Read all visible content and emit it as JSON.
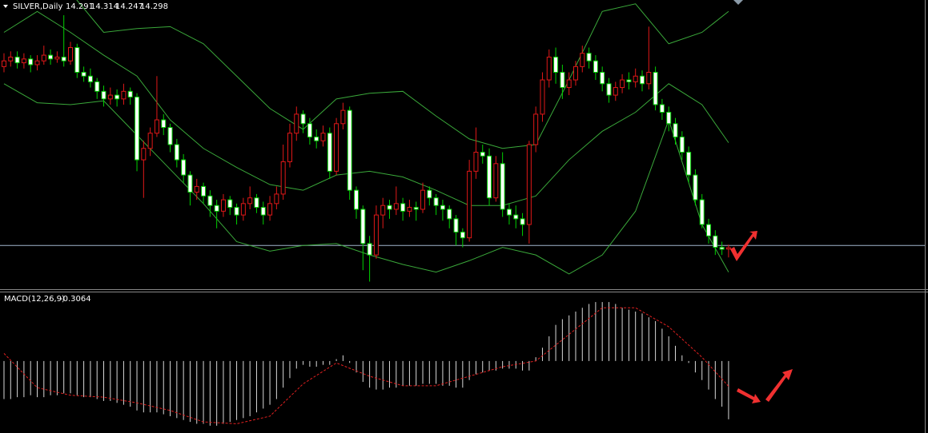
{
  "chart_data": [
    {
      "type": "candlestick",
      "title": "SILVER,Daily",
      "xlim": [
        -0.6,
        139.0
      ],
      "ylim": [
        14.08,
        15.6
      ],
      "up_color": "#e01818",
      "down_color": "#ffffff",
      "down_wick_color": "#00d000",
      "ohlc": [
        [
          15.25,
          15.32,
          15.22,
          15.28
        ],
        [
          15.28,
          15.33,
          15.25,
          15.3
        ],
        [
          15.3,
          15.33,
          15.24,
          15.27
        ],
        [
          15.27,
          15.32,
          15.24,
          15.29
        ],
        [
          15.29,
          15.31,
          15.22,
          15.26
        ],
        [
          15.26,
          15.31,
          15.23,
          15.28
        ],
        [
          15.28,
          15.36,
          15.26,
          15.31
        ],
        [
          15.31,
          15.34,
          15.26,
          15.29
        ],
        [
          15.29,
          15.33,
          15.27,
          15.3
        ],
        [
          15.3,
          15.52,
          15.25,
          15.28
        ],
        [
          15.28,
          15.38,
          15.26,
          15.35
        ],
        [
          15.35,
          15.37,
          15.19,
          15.22
        ],
        [
          15.22,
          15.25,
          15.17,
          15.2
        ],
        [
          15.2,
          15.24,
          15.14,
          15.17
        ],
        [
          15.17,
          15.19,
          15.08,
          15.12
        ],
        [
          15.12,
          15.15,
          15.04,
          15.08
        ],
        [
          15.08,
          15.14,
          15.05,
          15.1
        ],
        [
          15.1,
          15.13,
          15.04,
          15.08
        ],
        [
          15.08,
          15.16,
          15.05,
          15.12
        ],
        [
          15.12,
          15.14,
          15.05,
          15.09
        ],
        [
          15.09,
          15.11,
          14.7,
          14.76
        ],
        [
          14.76,
          14.86,
          14.56,
          14.82
        ],
        [
          14.82,
          14.93,
          14.78,
          14.9
        ],
        [
          14.9,
          15.2,
          14.88,
          14.97
        ],
        [
          14.97,
          15.0,
          14.89,
          14.93
        ],
        [
          14.93,
          14.95,
          14.8,
          14.84
        ],
        [
          14.84,
          14.87,
          14.72,
          14.76
        ],
        [
          14.76,
          14.79,
          14.64,
          14.68
        ],
        [
          14.68,
          14.7,
          14.52,
          14.59
        ],
        [
          14.59,
          14.66,
          14.55,
          14.62
        ],
        [
          14.62,
          14.64,
          14.53,
          14.57
        ],
        [
          14.57,
          14.6,
          14.46,
          14.52
        ],
        [
          14.52,
          14.55,
          14.4,
          14.49
        ],
        [
          14.49,
          14.58,
          14.46,
          14.55
        ],
        [
          14.55,
          14.57,
          14.47,
          14.51
        ],
        [
          14.51,
          14.53,
          14.42,
          14.47
        ],
        [
          14.47,
          14.56,
          14.44,
          14.53
        ],
        [
          14.53,
          14.62,
          14.5,
          14.56
        ],
        [
          14.56,
          14.58,
          14.48,
          14.51
        ],
        [
          14.51,
          14.54,
          14.42,
          14.47
        ],
        [
          14.47,
          14.57,
          14.44,
          14.53
        ],
        [
          14.53,
          14.62,
          14.5,
          14.58
        ],
        [
          14.58,
          14.84,
          14.55,
          14.75
        ],
        [
          14.75,
          14.95,
          14.72,
          14.9
        ],
        [
          14.9,
          15.04,
          14.86,
          15.0
        ],
        [
          15.0,
          15.02,
          14.9,
          14.95
        ],
        [
          14.95,
          14.98,
          14.84,
          14.88
        ],
        [
          14.88,
          14.92,
          14.82,
          14.86
        ],
        [
          14.86,
          14.94,
          14.83,
          14.9
        ],
        [
          14.9,
          14.93,
          14.66,
          14.7
        ],
        [
          14.7,
          14.98,
          14.68,
          14.95
        ],
        [
          14.95,
          15.06,
          14.92,
          15.02
        ],
        [
          15.02,
          15.04,
          14.55,
          14.6
        ],
        [
          14.6,
          14.62,
          14.45,
          14.5
        ],
        [
          14.5,
          14.52,
          14.18,
          14.32
        ],
        [
          14.32,
          14.36,
          14.12,
          14.26
        ],
        [
          14.26,
          14.52,
          14.24,
          14.47
        ],
        [
          14.47,
          14.56,
          14.4,
          14.52
        ],
        [
          14.52,
          14.55,
          14.45,
          14.5
        ],
        [
          14.5,
          14.62,
          14.47,
          14.53
        ],
        [
          14.53,
          14.56,
          14.44,
          14.49
        ],
        [
          14.49,
          14.55,
          14.46,
          14.51
        ],
        [
          14.51,
          14.54,
          14.44,
          14.5
        ],
        [
          14.5,
          14.64,
          14.48,
          14.6
        ],
        [
          14.6,
          14.62,
          14.52,
          14.56
        ],
        [
          14.56,
          14.58,
          14.47,
          14.52
        ],
        [
          14.52,
          14.55,
          14.44,
          14.5
        ],
        [
          14.5,
          14.52,
          14.4,
          14.45
        ],
        [
          14.45,
          14.47,
          14.31,
          14.38
        ],
        [
          14.38,
          14.4,
          14.3,
          14.35
        ],
        [
          14.35,
          14.76,
          14.33,
          14.7
        ],
        [
          14.7,
          14.93,
          14.66,
          14.8
        ],
        [
          14.8,
          14.84,
          14.74,
          14.78
        ],
        [
          14.78,
          14.82,
          14.52,
          14.56
        ],
        [
          14.56,
          14.78,
          14.54,
          14.74
        ],
        [
          14.74,
          14.8,
          14.46,
          14.5
        ],
        [
          14.5,
          14.53,
          14.42,
          14.47
        ],
        [
          14.47,
          14.52,
          14.4,
          14.45
        ],
        [
          14.45,
          14.48,
          14.36,
          14.42
        ],
        [
          14.42,
          14.86,
          14.32,
          14.84
        ],
        [
          14.84,
          15.04,
          14.8,
          15.0
        ],
        [
          15.0,
          15.22,
          14.96,
          15.18
        ],
        [
          15.18,
          15.34,
          15.14,
          15.3
        ],
        [
          15.3,
          15.35,
          15.16,
          15.22
        ],
        [
          15.22,
          15.26,
          15.08,
          15.14
        ],
        [
          15.14,
          15.22,
          15.1,
          15.18
        ],
        [
          15.18,
          15.28,
          15.15,
          15.25
        ],
        [
          15.25,
          15.36,
          15.22,
          15.32
        ],
        [
          15.32,
          15.35,
          15.24,
          15.28
        ],
        [
          15.28,
          15.31,
          15.18,
          15.22
        ],
        [
          15.22,
          15.25,
          15.12,
          15.16
        ],
        [
          15.16,
          15.19,
          15.06,
          15.1
        ],
        [
          15.1,
          15.17,
          15.07,
          15.14
        ],
        [
          15.14,
          15.21,
          15.11,
          15.18
        ],
        [
          15.18,
          15.22,
          15.13,
          15.17
        ],
        [
          15.17,
          15.24,
          15.14,
          15.2
        ],
        [
          15.2,
          15.23,
          15.12,
          15.16
        ],
        [
          15.16,
          15.46,
          15.13,
          15.22
        ],
        [
          15.22,
          15.25,
          15.02,
          15.05
        ],
        [
          15.05,
          15.08,
          14.97,
          15.01
        ],
        [
          15.01,
          15.04,
          14.91,
          14.95
        ],
        [
          14.95,
          14.98,
          14.84,
          14.88
        ],
        [
          14.88,
          14.91,
          14.76,
          14.8
        ],
        [
          14.8,
          14.83,
          14.64,
          14.68
        ],
        [
          14.68,
          14.71,
          14.52,
          14.55
        ],
        [
          14.55,
          14.58,
          14.4,
          14.42
        ],
        [
          14.42,
          14.45,
          14.32,
          14.36
        ],
        [
          14.36,
          14.39,
          14.26,
          14.3
        ],
        [
          14.3,
          14.33,
          14.26,
          14.29
        ],
        [
          14.291,
          14.314,
          14.247,
          14.298
        ]
      ],
      "overlays": [
        {
          "color": "#3aa83a",
          "x": [
            0,
            5,
            10,
            15,
            20,
            25,
            30,
            35,
            40,
            45,
            50,
            55,
            60,
            65,
            70,
            75,
            80,
            85,
            90,
            95,
            100,
            105,
            109
          ],
          "values": [
            15.71,
            15.68,
            15.64,
            15.43,
            15.45,
            15.46,
            15.37,
            15.2,
            15.03,
            14.92,
            15.08,
            15.11,
            15.12,
            14.99,
            14.87,
            14.82,
            14.84,
            15.18,
            15.54,
            15.58,
            15.37,
            15.43,
            15.54
          ]
        },
        {
          "color": "#3aa83a",
          "x": [
            0,
            5,
            10,
            15,
            20,
            25,
            30,
            35,
            40,
            45,
            50,
            55,
            60,
            65,
            70,
            75,
            80,
            85,
            90,
            95,
            100,
            105,
            109
          ],
          "values": [
            15.43,
            15.54,
            15.43,
            15.31,
            15.2,
            14.97,
            14.82,
            14.72,
            14.63,
            14.6,
            14.68,
            14.7,
            14.67,
            14.6,
            14.52,
            14.52,
            14.57,
            14.76,
            14.91,
            15.01,
            15.16,
            15.05,
            14.85
          ]
        },
        {
          "color": "#3aa83a",
          "x": [
            0,
            5,
            10,
            15,
            20,
            25,
            30,
            35,
            40,
            45,
            50,
            55,
            60,
            65,
            70,
            75,
            80,
            85,
            90,
            95,
            100,
            105,
            109
          ],
          "values": [
            15.16,
            15.06,
            15.05,
            15.07,
            14.89,
            14.71,
            14.53,
            14.33,
            14.28,
            14.31,
            14.32,
            14.26,
            14.21,
            14.17,
            14.23,
            14.3,
            14.26,
            14.16,
            14.26,
            14.49,
            14.97,
            14.42,
            14.17
          ]
        }
      ],
      "level": 14.31,
      "level_color": "#9fb4cc"
    },
    {
      "type": "macd",
      "title": "MACD(12,26,9)",
      "xlim": [
        -0.6,
        139.0
      ],
      "ylim": [
        -0.37,
        0.365
      ],
      "histogram_color": "#d8d8d8",
      "histogram": [
        -0.2,
        -0.2,
        -0.19,
        -0.19,
        -0.18,
        -0.19,
        -0.19,
        -0.18,
        -0.18,
        -0.17,
        -0.17,
        -0.18,
        -0.19,
        -0.19,
        -0.2,
        -0.21,
        -0.21,
        -0.22,
        -0.23,
        -0.24,
        -0.26,
        -0.27,
        -0.27,
        -0.27,
        -0.28,
        -0.29,
        -0.3,
        -0.31,
        -0.32,
        -0.33,
        -0.33,
        -0.34,
        -0.34,
        -0.33,
        -0.32,
        -0.31,
        -0.3,
        -0.29,
        -0.27,
        -0.25,
        -0.23,
        -0.2,
        -0.14,
        -0.09,
        -0.04,
        -0.02,
        -0.03,
        -0.03,
        -0.02,
        -0.02,
        0.01,
        0.03,
        -0.01,
        -0.06,
        -0.11,
        -0.14,
        -0.15,
        -0.15,
        -0.14,
        -0.14,
        -0.13,
        -0.13,
        -0.13,
        -0.12,
        -0.12,
        -0.12,
        -0.13,
        -0.13,
        -0.14,
        -0.14,
        -0.1,
        -0.07,
        -0.06,
        -0.05,
        -0.05,
        -0.04,
        -0.04,
        -0.04,
        -0.05,
        -0.05,
        0.02,
        0.07,
        0.13,
        0.19,
        0.22,
        0.24,
        0.26,
        0.28,
        0.3,
        0.31,
        0.31,
        0.31,
        0.3,
        0.28,
        0.27,
        0.26,
        0.25,
        0.23,
        0.21,
        0.17,
        0.13,
        0.08,
        0.03,
        -0.01,
        -0.06,
        -0.1,
        -0.15,
        -0.2,
        -0.24,
        -0.3064
      ],
      "signal": {
        "color": "#e02020",
        "x": [
          0,
          5,
          10,
          15,
          20,
          25,
          30,
          35,
          40,
          45,
          50,
          55,
          60,
          65,
          70,
          75,
          80,
          85,
          90,
          95,
          100,
          105,
          109
        ],
        "values": [
          0.04,
          -0.14,
          -0.18,
          -0.19,
          -0.22,
          -0.26,
          -0.32,
          -0.33,
          -0.29,
          -0.12,
          -0.01,
          -0.08,
          -0.13,
          -0.13,
          -0.08,
          -0.03,
          0,
          0.14,
          0.28,
          0.28,
          0.18,
          0.02,
          -0.1328
        ]
      }
    }
  ]
}
